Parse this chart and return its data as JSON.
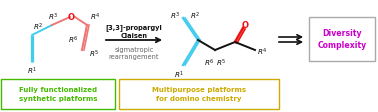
{
  "bg_color": "#ffffff",
  "reaction_label_line1": "[3,3]-propargyl",
  "reaction_label_line2": "Claisen",
  "reaction_label_line3": "sigmatropic",
  "reaction_label_line4": "rearrangement",
  "box1_text_line1": "Fully functionalized",
  "box1_text_line2": "synthetic platforms",
  "box1_color": "#44bb00",
  "box1_border": "#44bb00",
  "box2_text_line1": "Multipurpose platforms",
  "box2_text_line2": "for domino chemistry",
  "box2_color": "#ccaa00",
  "box2_border": "#ccaa00",
  "box3_text_line1": "Diversity",
  "box3_text_line2": "Complexity",
  "box3_color": "#cc00cc",
  "box3_border": "#aaaaaa",
  "cyan_color": "#44ccee",
  "red_color": "#ee1111",
  "pink_color": "#ee7777",
  "dark_color": "#111111",
  "gray_color": "#666666"
}
